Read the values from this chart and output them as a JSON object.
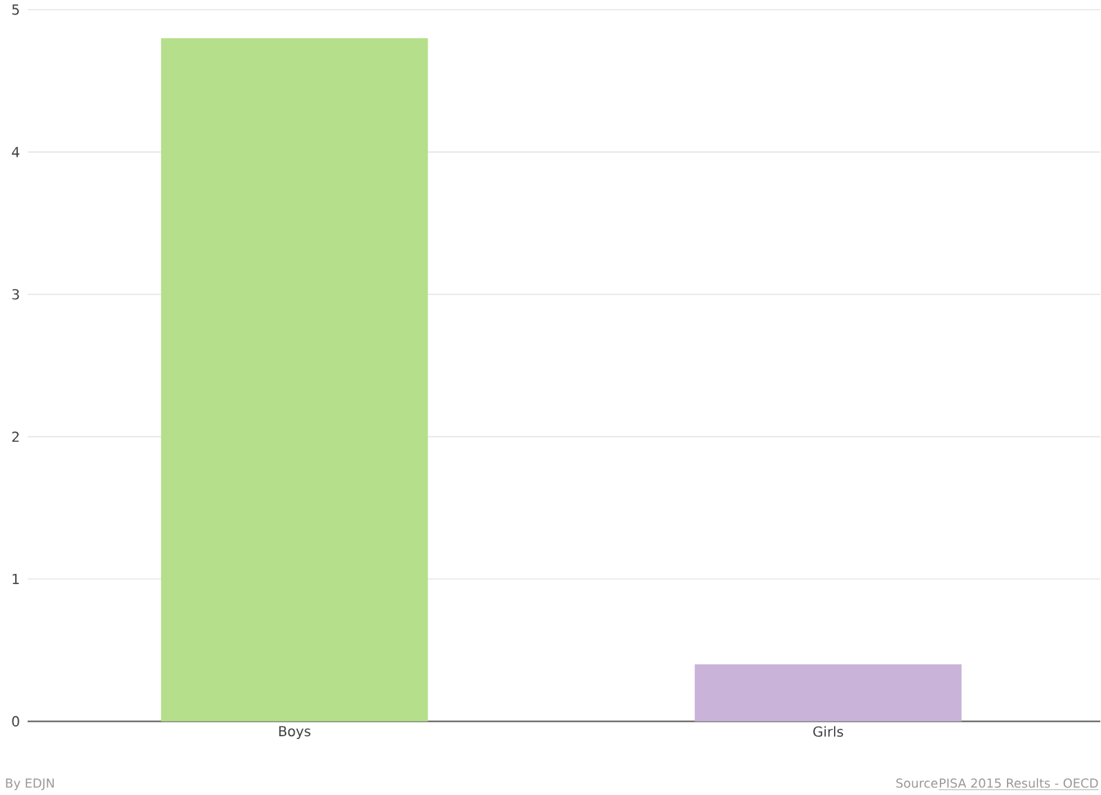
{
  "chart_data": {
    "type": "bar",
    "categories": [
      "Boys",
      "Girls"
    ],
    "values": [
      4.8,
      0.4
    ],
    "colors": [
      "#b5df8a",
      "#c9b3d8"
    ],
    "ylim": [
      0,
      5
    ],
    "yticks": [
      0,
      1,
      2,
      3,
      4,
      5
    ],
    "grid": "y",
    "annotations": [
      "By EDJN",
      "Source",
      "PISA 2015 Results - OECD"
    ]
  }
}
